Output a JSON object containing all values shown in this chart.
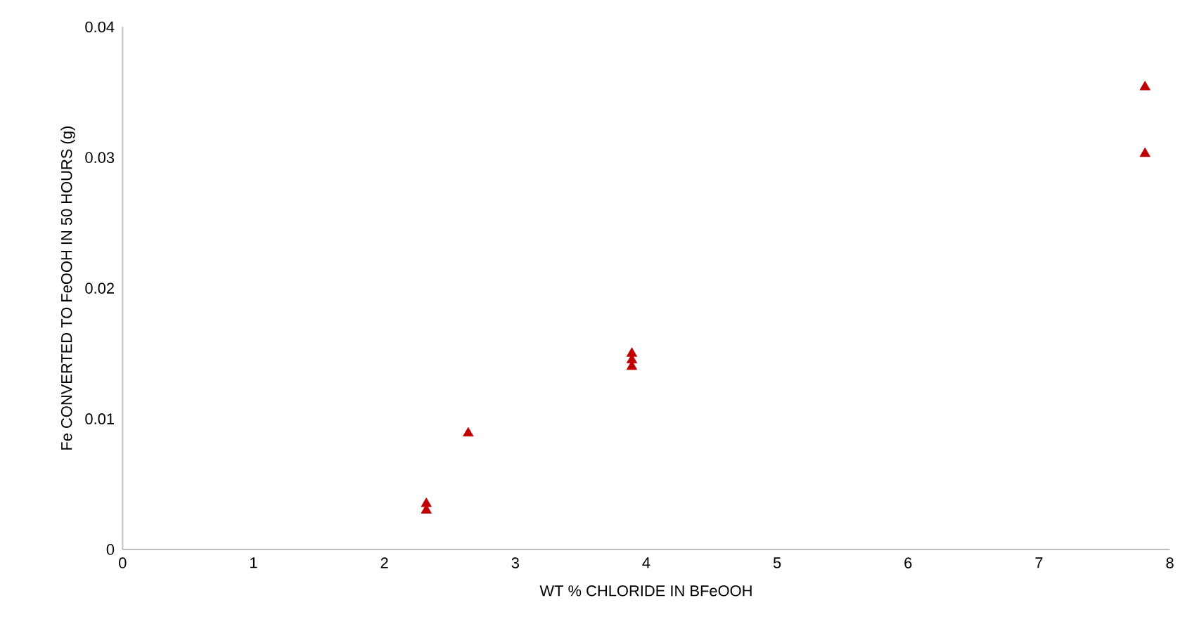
{
  "chart_data": {
    "type": "scatter",
    "xlabel": "WT % CHLORIDE IN BFeOOH",
    "ylabel": "Fe CONVERTED  TO FeOOH IN 50 HOURS (g)",
    "x": [
      2.32,
      2.32,
      2.64,
      3.89,
      3.89,
      3.89,
      7.81,
      7.81
    ],
    "values": [
      0.003,
      0.0035,
      0.0089,
      0.014,
      0.0145,
      0.015,
      0.0303,
      0.0354
    ],
    "color": "#c00000",
    "marker": "triangle",
    "xlim": [
      0,
      8
    ],
    "xticks": [
      0,
      1,
      2,
      3,
      4,
      5,
      6,
      7,
      8
    ],
    "ylim": [
      0,
      0.04
    ],
    "yticks": [
      0,
      0.01,
      0.02,
      0.03,
      0.04
    ],
    "grid": false
  }
}
